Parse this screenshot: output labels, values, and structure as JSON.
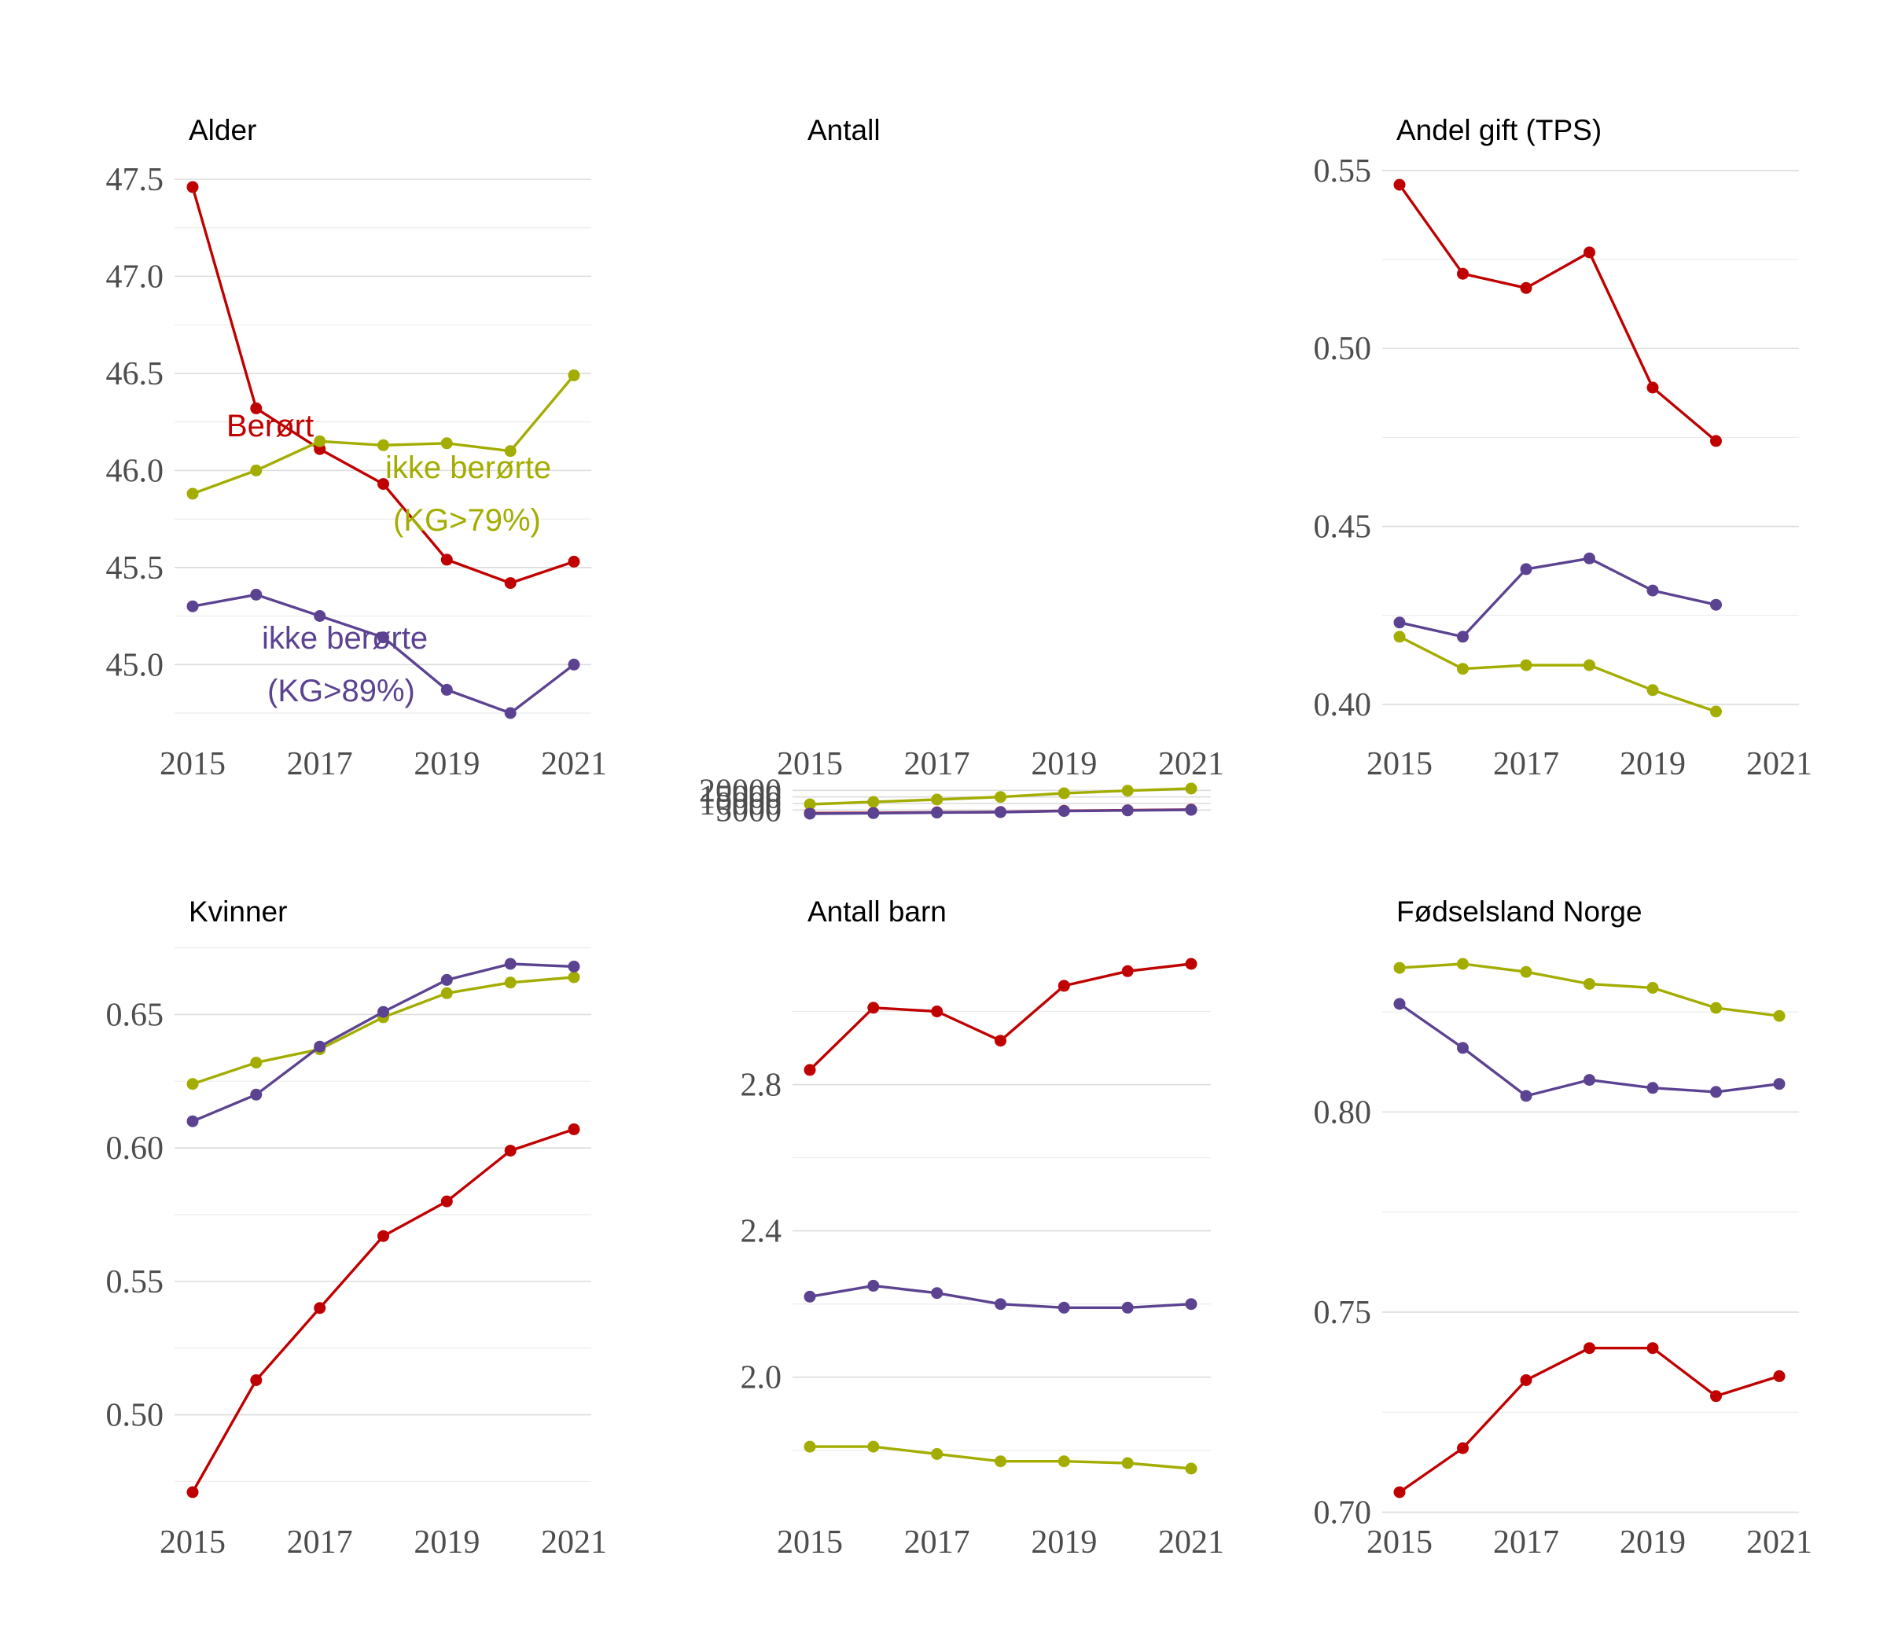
{
  "colors": {
    "berort": "#c00000",
    "ikke79": "#a3ad00",
    "ikke89": "#5c4391"
  },
  "chart_data": [
    {
      "type": "line",
      "title": "Alder",
      "x": [
        2015,
        2016,
        2017,
        2018,
        2019,
        2020,
        2021
      ],
      "xticks": [
        "2015",
        "2017",
        "2019",
        "2021"
      ],
      "yticks": [
        "45.0",
        "45.5",
        "46.0",
        "46.5",
        "47.0",
        "47.5"
      ],
      "ylim": [
        44.75,
        47.5
      ],
      "series": [
        {
          "name": "Berørt",
          "color": "#c00000",
          "values": [
            47.46,
            46.32,
            46.11,
            45.93,
            45.54,
            45.42,
            45.53
          ]
        },
        {
          "name": "ikke berørte (KG>79%)",
          "color": "#a3ad00",
          "values": [
            45.88,
            46.0,
            46.15,
            46.13,
            46.14,
            46.1,
            46.49
          ]
        },
        {
          "name": "ikke berørte (KG>89%)",
          "color": "#5c4391",
          "values": [
            45.3,
            45.36,
            45.25,
            45.14,
            44.87,
            44.75,
            45.0
          ]
        }
      ],
      "annotations": [
        {
          "text": "Berørt",
          "series": 0
        },
        {
          "text": "ikke berørte",
          "series": 1
        },
        {
          "text": "(KG>79%)",
          "series": 1
        },
        {
          "text": "ikke berørte",
          "series": 2
        },
        {
          "text": "(KG>89%)",
          "series": 2
        }
      ]
    },
    {
      "type": "line",
      "title": "Antall",
      "x": [
        2015,
        2016,
        2017,
        2018,
        2019,
        2020,
        2021
      ],
      "xticks": [
        "2015",
        "2017",
        "2019",
        "2021"
      ],
      "yticks": [
        "5000",
        "10000",
        "15000",
        "20000"
      ],
      "ylim": [
        2200,
        21400
      ],
      "series": [
        {
          "name": "Berørt",
          "color": "#c00000",
          "values": [
            2600,
            2850,
            3250,
            3500,
            4400,
            4850,
            5350
          ]
        },
        {
          "name": "ikke berørte (KG>79%)",
          "color": "#a3ad00",
          "values": [
            9400,
            11200,
            13000,
            15000,
            17800,
            19800,
            21400
          ]
        },
        {
          "name": "ikke berørte (KG>89%)",
          "color": "#5c4391",
          "values": [
            2200,
            2650,
            3050,
            3400,
            4250,
            4750,
            5150
          ]
        }
      ]
    },
    {
      "type": "line",
      "title": "Andel gift (TPS)",
      "x": [
        2015,
        2016,
        2017,
        2018,
        2019,
        2020
      ],
      "xticks": [
        "2015",
        "2017",
        "2019",
        "2021"
      ],
      "xrange": [
        2015,
        2021
      ],
      "yticks": [
        "0.40",
        "0.45",
        "0.50",
        "0.55"
      ],
      "ylim": [
        0.398,
        0.546
      ],
      "series": [
        {
          "name": "Berørt",
          "color": "#c00000",
          "values": [
            0.546,
            0.521,
            0.517,
            0.527,
            0.489,
            0.474
          ]
        },
        {
          "name": "ikke berørte (KG>79%)",
          "color": "#a3ad00",
          "values": [
            0.419,
            0.41,
            0.411,
            0.411,
            0.404,
            0.398
          ]
        },
        {
          "name": "ikke berørte (KG>89%)",
          "color": "#5c4391",
          "values": [
            0.423,
            0.419,
            0.438,
            0.441,
            0.432,
            0.428
          ]
        }
      ]
    },
    {
      "type": "line",
      "title": "Kvinner",
      "x": [
        2015,
        2016,
        2017,
        2018,
        2019,
        2020,
        2021
      ],
      "xticks": [
        "2015",
        "2017",
        "2019",
        "2021"
      ],
      "yticks": [
        "0.50",
        "0.55",
        "0.60",
        "0.65"
      ],
      "ylim": [
        0.471,
        0.669
      ],
      "series": [
        {
          "name": "Berørt",
          "color": "#c00000",
          "values": [
            0.471,
            0.513,
            0.54,
            0.567,
            0.58,
            0.599,
            0.607
          ]
        },
        {
          "name": "ikke berørte (KG>79%)",
          "color": "#a3ad00",
          "values": [
            0.624,
            0.632,
            0.637,
            0.649,
            0.658,
            0.662,
            0.664
          ]
        },
        {
          "name": "ikke berørte (KG>89%)",
          "color": "#5c4391",
          "values": [
            0.61,
            0.62,
            0.638,
            0.651,
            0.663,
            0.669,
            0.668
          ]
        }
      ]
    },
    {
      "type": "line",
      "title": "Antall barn",
      "x": [
        2015,
        2016,
        2017,
        2018,
        2019,
        2020,
        2021
      ],
      "xticks": [
        "2015",
        "2017",
        "2019",
        "2021"
      ],
      "yticks": [
        "2.0",
        "2.4",
        "2.8"
      ],
      "ylim": [
        1.75,
        3.13
      ],
      "series": [
        {
          "name": "Berørt",
          "color": "#c00000",
          "values": [
            2.84,
            3.01,
            3.0,
            2.92,
            3.07,
            3.11,
            3.13
          ]
        },
        {
          "name": "ikke berørte (KG>79%)",
          "color": "#a3ad00",
          "values": [
            1.81,
            1.81,
            1.79,
            1.77,
            1.77,
            1.765,
            1.75
          ]
        },
        {
          "name": "ikke berørte (KG>89%)",
          "color": "#5c4391",
          "values": [
            2.22,
            2.25,
            2.23,
            2.2,
            2.19,
            2.19,
            2.2
          ]
        }
      ]
    },
    {
      "type": "line",
      "title": "Fødselsland Norge",
      "x": [
        2015,
        2016,
        2017,
        2018,
        2019,
        2020,
        2021
      ],
      "xticks": [
        "2015",
        "2017",
        "2019",
        "2021"
      ],
      "yticks": [
        "0.70",
        "0.75",
        "0.80"
      ],
      "ylim": [
        0.705,
        0.837
      ],
      "series": [
        {
          "name": "Berørt",
          "color": "#c00000",
          "values": [
            0.705,
            0.716,
            0.733,
            0.741,
            0.741,
            0.729,
            0.734
          ]
        },
        {
          "name": "ikke berørte (KG>79%)",
          "color": "#a3ad00",
          "values": [
            0.836,
            0.837,
            0.835,
            0.832,
            0.831,
            0.826,
            0.824
          ]
        },
        {
          "name": "ikke berørte (KG>89%)",
          "color": "#5c4391",
          "values": [
            0.827,
            0.816,
            0.804,
            0.808,
            0.806,
            0.805,
            0.807
          ]
        }
      ]
    }
  ]
}
